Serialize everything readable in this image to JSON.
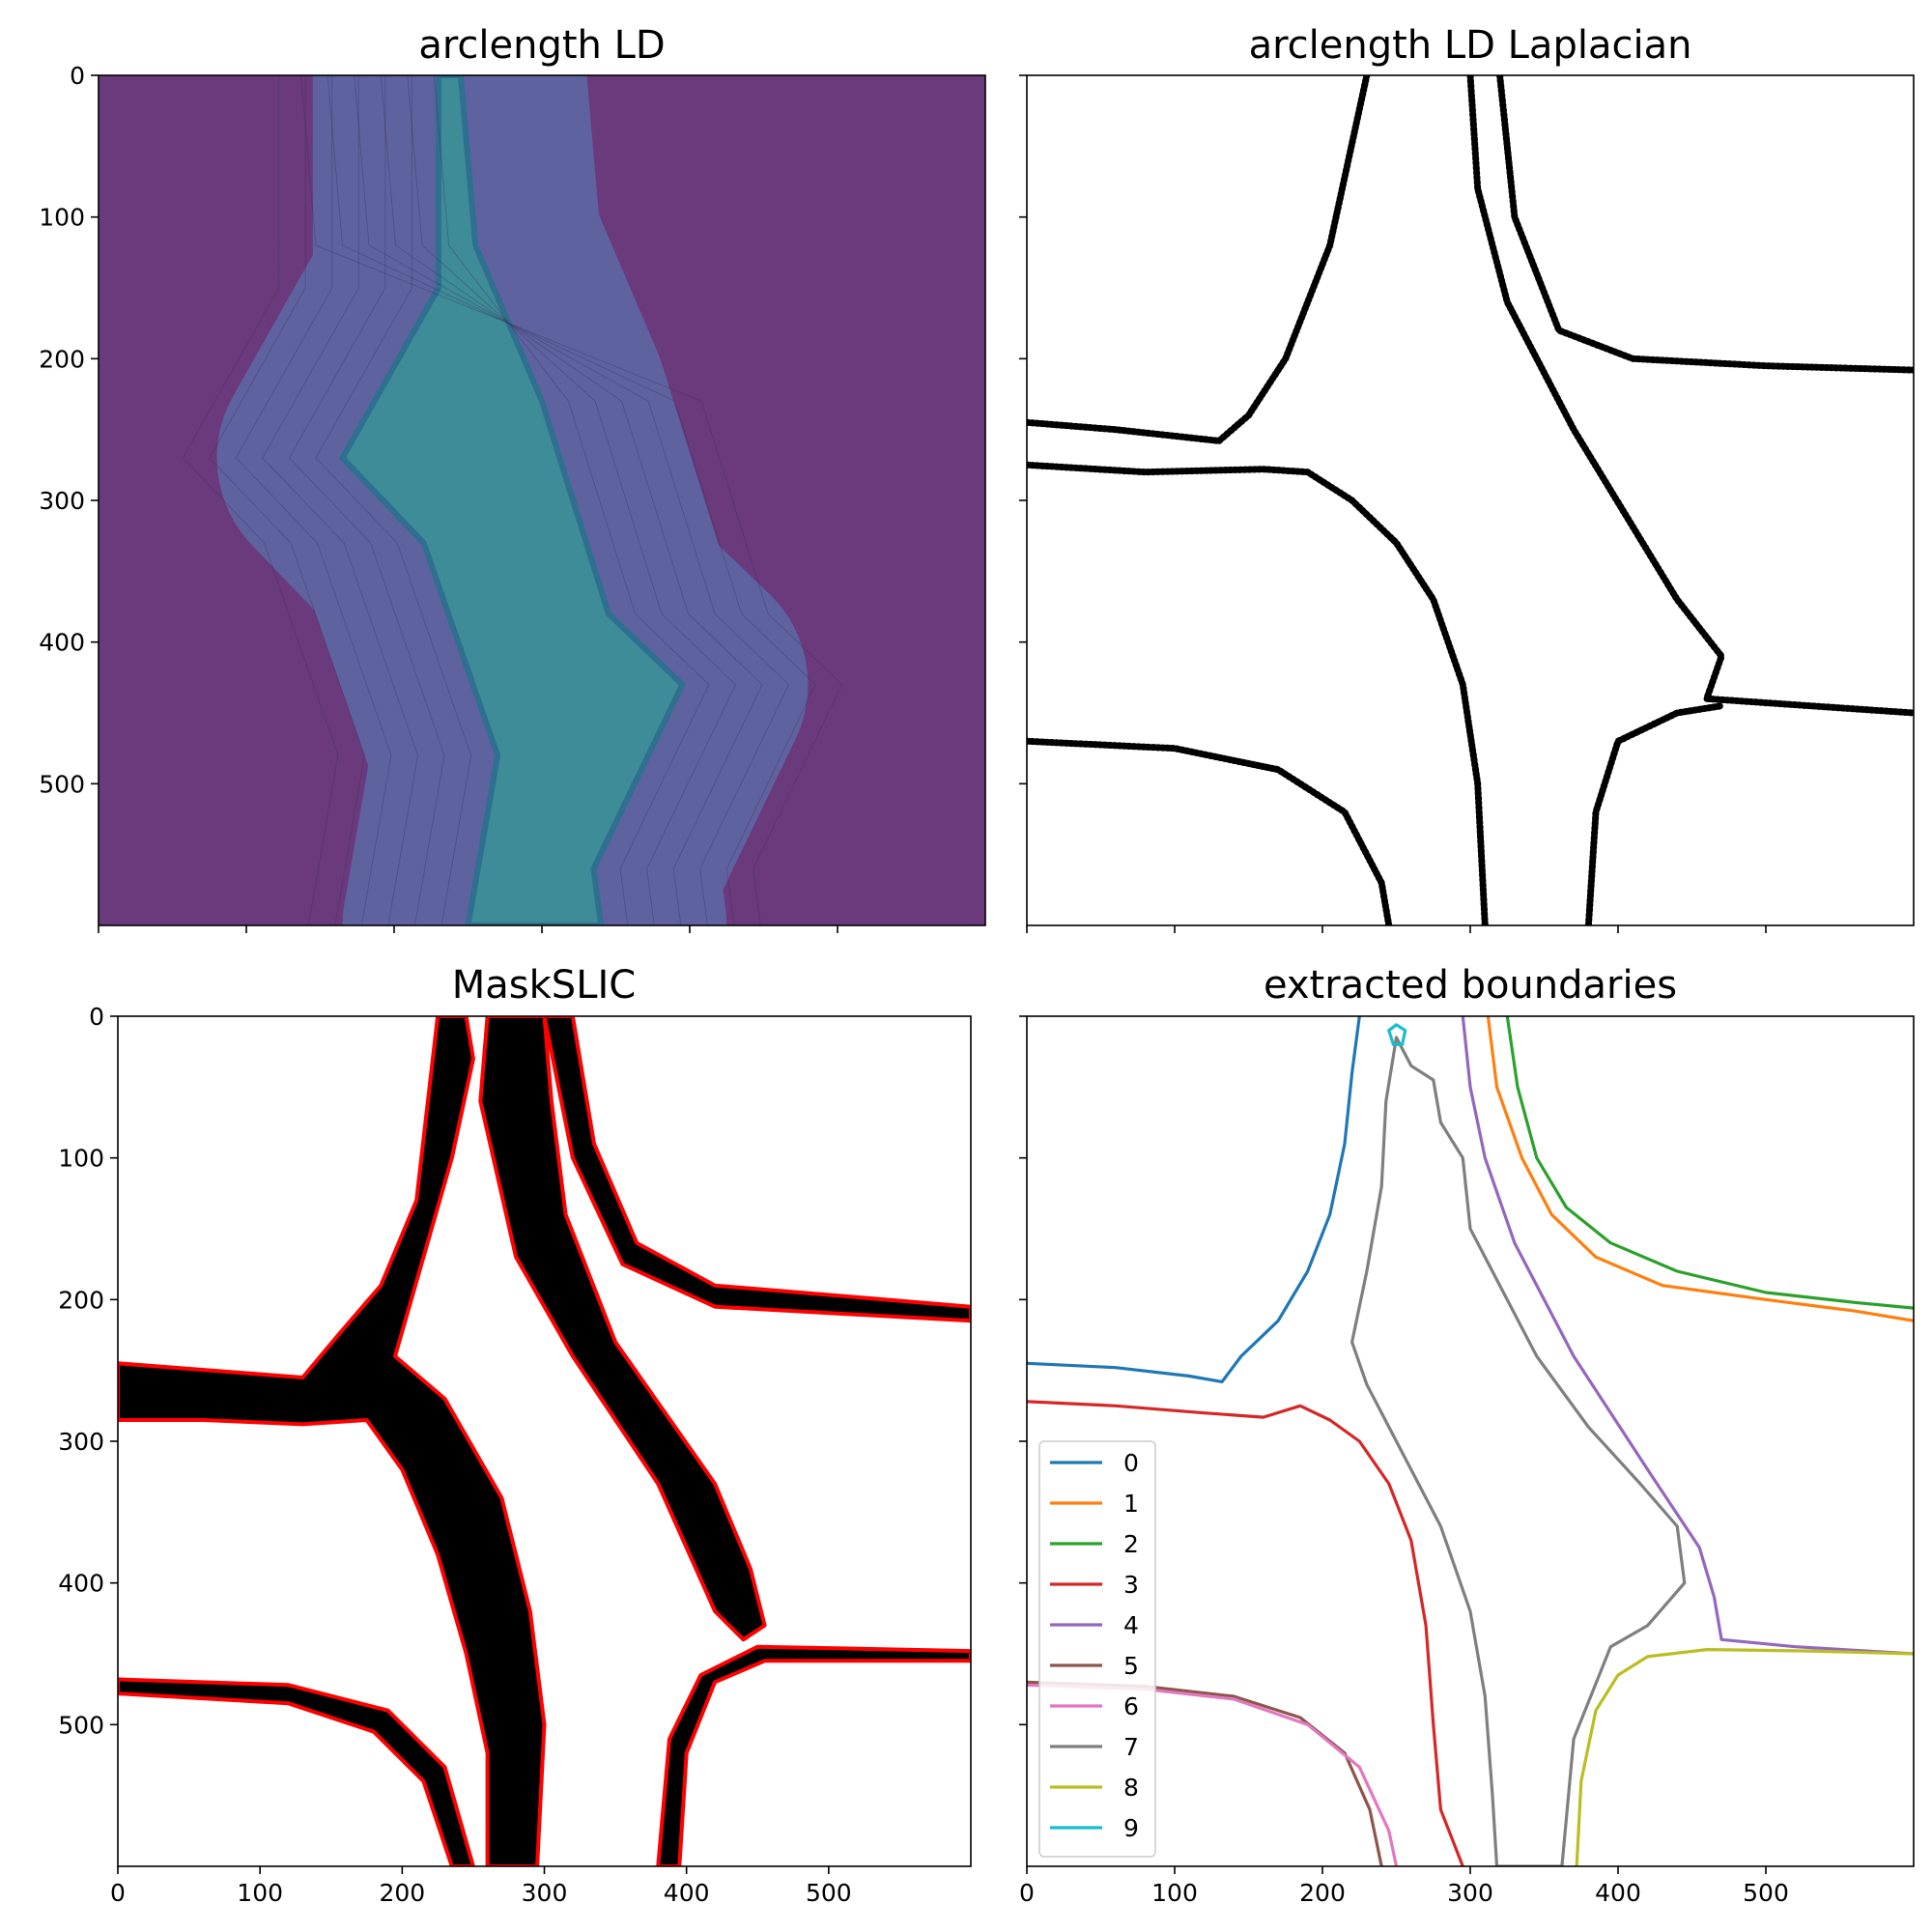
{
  "chart_data": [
    {
      "type": "heatmap",
      "title": "arclength LD",
      "xlim": [
        0,
        600
      ],
      "ylim": [
        600,
        0
      ],
      "yticks": [
        0,
        100,
        200,
        300,
        400,
        500
      ],
      "xticks": [
        0,
        100,
        200,
        300,
        400,
        500
      ],
      "show_xtick_labels": false,
      "show_ytick_labels": true,
      "colormap": "viridis",
      "colors": {
        "background": "#6b3a7c",
        "mid": "#5e63a0",
        "ridge": "#3e8c98"
      },
      "features": [
        {
          "name": "ridge-vertical",
          "points": [
            [
              245,
              0
            ],
            [
              255,
              120
            ],
            [
              300,
              230
            ],
            [
              345,
              380
            ],
            [
              395,
              430
            ],
            [
              335,
              560
            ],
            [
              340,
              600
            ],
            [
              250,
              600
            ],
            [
              270,
              480
            ],
            [
              220,
              330
            ],
            [
              165,
              270
            ],
            [
              230,
              150
            ],
            [
              230,
              0
            ]
          ]
        }
      ]
    },
    {
      "type": "scatter",
      "title": "arclength LD Laplacian",
      "xlim": [
        0,
        600
      ],
      "ylim": [
        600,
        0
      ],
      "yticks": [
        0,
        100,
        200,
        300,
        400,
        500
      ],
      "xticks": [
        0,
        100,
        200,
        300,
        400,
        500
      ],
      "show_xtick_labels": false,
      "show_ytick_labels": false,
      "color": "#000000",
      "curves": [
        [
          [
            0,
            245
          ],
          [
            60,
            250
          ],
          [
            130,
            258
          ],
          [
            150,
            240
          ],
          [
            175,
            200
          ],
          [
            205,
            120
          ],
          [
            230,
            0
          ]
        ],
        [
          [
            0,
            275
          ],
          [
            80,
            280
          ],
          [
            160,
            278
          ],
          [
            190,
            280
          ],
          [
            220,
            300
          ],
          [
            250,
            330
          ],
          [
            275,
            370
          ],
          [
            295,
            430
          ],
          [
            305,
            500
          ],
          [
            310,
            600
          ]
        ],
        [
          [
            320,
            0
          ],
          [
            330,
            100
          ],
          [
            360,
            180
          ],
          [
            410,
            200
          ],
          [
            500,
            205
          ],
          [
            600,
            208
          ]
        ],
        [
          [
            300,
            0
          ],
          [
            305,
            80
          ],
          [
            325,
            160
          ],
          [
            370,
            250
          ],
          [
            440,
            370
          ],
          [
            470,
            410
          ],
          [
            460,
            440
          ],
          [
            530,
            445
          ],
          [
            600,
            450
          ]
        ],
        [
          [
            0,
            470
          ],
          [
            100,
            475
          ],
          [
            170,
            490
          ],
          [
            215,
            520
          ],
          [
            240,
            570
          ],
          [
            245,
            600
          ]
        ],
        [
          [
            380,
            600
          ],
          [
            385,
            520
          ],
          [
            400,
            470
          ],
          [
            440,
            450
          ],
          [
            470,
            445
          ]
        ]
      ]
    },
    {
      "type": "heatmap",
      "title": "MaskSLIC",
      "xlim": [
        0,
        600
      ],
      "ylim": [
        600,
        0
      ],
      "xticks": [
        0,
        100,
        200,
        300,
        400,
        500
      ],
      "yticks": [
        0,
        100,
        200,
        300,
        400,
        500
      ],
      "show_xtick_labels": true,
      "show_ytick_labels": true,
      "colors": {
        "mask": "#000000",
        "outline": "#ff0000"
      },
      "regions": [
        [
          [
            0,
            245
          ],
          [
            130,
            255
          ],
          [
            155,
            225
          ],
          [
            185,
            190
          ],
          [
            210,
            130
          ],
          [
            225,
            0
          ],
          [
            245,
            0
          ],
          [
            250,
            30
          ],
          [
            235,
            100
          ],
          [
            215,
            170
          ],
          [
            195,
            240
          ],
          [
            230,
            270
          ],
          [
            270,
            340
          ],
          [
            290,
            420
          ],
          [
            300,
            500
          ],
          [
            295,
            600
          ],
          [
            260,
            600
          ],
          [
            260,
            520
          ],
          [
            245,
            450
          ],
          [
            225,
            380
          ],
          [
            200,
            320
          ],
          [
            175,
            285
          ],
          [
            130,
            288
          ],
          [
            60,
            285
          ],
          [
            0,
            285
          ]
        ],
        [
          [
            300,
            0
          ],
          [
            320,
            0
          ],
          [
            335,
            90
          ],
          [
            365,
            160
          ],
          [
            420,
            190
          ],
          [
            600,
            205
          ],
          [
            600,
            215
          ],
          [
            420,
            205
          ],
          [
            355,
            175
          ],
          [
            320,
            100
          ]
        ],
        [
          [
            0,
            468
          ],
          [
            120,
            472
          ],
          [
            190,
            490
          ],
          [
            230,
            530
          ],
          [
            250,
            600
          ],
          [
            235,
            600
          ],
          [
            215,
            540
          ],
          [
            180,
            505
          ],
          [
            120,
            485
          ],
          [
            0,
            478
          ]
        ],
        [
          [
            380,
            600
          ],
          [
            388,
            510
          ],
          [
            410,
            465
          ],
          [
            450,
            445
          ],
          [
            600,
            448
          ],
          [
            600,
            455
          ],
          [
            455,
            455
          ],
          [
            420,
            470
          ],
          [
            400,
            520
          ],
          [
            395,
            600
          ]
        ],
        [
          [
            260,
            0
          ],
          [
            300,
            0
          ],
          [
            305,
            60
          ],
          [
            315,
            140
          ],
          [
            350,
            230
          ],
          [
            420,
            330
          ],
          [
            445,
            390
          ],
          [
            455,
            430
          ],
          [
            440,
            440
          ],
          [
            420,
            420
          ],
          [
            380,
            330
          ],
          [
            320,
            240
          ],
          [
            280,
            170
          ],
          [
            255,
            60
          ]
        ]
      ]
    },
    {
      "type": "line",
      "title": "extracted boundaries",
      "xlim": [
        0,
        600
      ],
      "ylim": [
        600,
        0
      ],
      "xticks": [
        0,
        100,
        200,
        300,
        400,
        500
      ],
      "yticks": [
        0,
        100,
        200,
        300,
        400,
        500
      ],
      "show_xtick_labels": true,
      "show_ytick_labels": false,
      "legend": "lower-left",
      "series": [
        {
          "name": "0",
          "color": "#1f77b4",
          "points": [
            [
              0,
              245
            ],
            [
              60,
              248
            ],
            [
              110,
              254
            ],
            [
              132,
              258
            ],
            [
              145,
              240
            ],
            [
              170,
              215
            ],
            [
              190,
              180
            ],
            [
              205,
              140
            ],
            [
              215,
              90
            ],
            [
              220,
              40
            ],
            [
              225,
              0
            ]
          ]
        },
        {
          "name": "1",
          "color": "#ff7f0e",
          "points": [
            [
              312,
              0
            ],
            [
              318,
              50
            ],
            [
              335,
              100
            ],
            [
              355,
              140
            ],
            [
              385,
              170
            ],
            [
              430,
              190
            ],
            [
              500,
              200
            ],
            [
              560,
              208
            ],
            [
              600,
              215
            ]
          ]
        },
        {
          "name": "2",
          "color": "#2ca02c",
          "points": [
            [
              325,
              0
            ],
            [
              332,
              50
            ],
            [
              345,
              100
            ],
            [
              365,
              135
            ],
            [
              395,
              160
            ],
            [
              440,
              180
            ],
            [
              500,
              195
            ],
            [
              560,
              202
            ],
            [
              600,
              206
            ]
          ]
        },
        {
          "name": "3",
          "color": "#d62728",
          "points": [
            [
              0,
              272
            ],
            [
              60,
              275
            ],
            [
              120,
              280
            ],
            [
              160,
              283
            ],
            [
              185,
              275
            ],
            [
              205,
              285
            ],
            [
              225,
              300
            ],
            [
              245,
              330
            ],
            [
              260,
              370
            ],
            [
              270,
              430
            ],
            [
              275,
              500
            ],
            [
              280,
              560
            ],
            [
              295,
              600
            ]
          ]
        },
        {
          "name": "4",
          "color": "#9467bd",
          "points": [
            [
              295,
              0
            ],
            [
              300,
              50
            ],
            [
              310,
              100
            ],
            [
              330,
              160
            ],
            [
              370,
              240
            ],
            [
              420,
              320
            ],
            [
              455,
              375
            ],
            [
              465,
              410
            ],
            [
              470,
              440
            ],
            [
              520,
              445
            ],
            [
              600,
              450
            ]
          ]
        },
        {
          "name": "5",
          "color": "#8c564b",
          "points": [
            [
              0,
              470
            ],
            [
              80,
              473
            ],
            [
              140,
              480
            ],
            [
              185,
              495
            ],
            [
              215,
              520
            ],
            [
              232,
              560
            ],
            [
              240,
              600
            ]
          ]
        },
        {
          "name": "6",
          "color": "#e377c2",
          "points": [
            [
              0,
              472
            ],
            [
              80,
              475
            ],
            [
              140,
              482
            ],
            [
              190,
              500
            ],
            [
              225,
              530
            ],
            [
              245,
              575
            ],
            [
              250,
              600
            ]
          ]
        },
        {
          "name": "7",
          "color": "#7f7f7f",
          "points": [
            [
              250,
              15
            ],
            [
              260,
              35
            ],
            [
              275,
              45
            ],
            [
              280,
              75
            ],
            [
              295,
              100
            ],
            [
              300,
              150
            ],
            [
              320,
              190
            ],
            [
              345,
              240
            ],
            [
              380,
              290
            ],
            [
              415,
              330
            ],
            [
              440,
              360
            ],
            [
              445,
              400
            ],
            [
              420,
              430
            ],
            [
              395,
              445
            ],
            [
              370,
              510
            ],
            [
              362,
              600
            ],
            [
              318,
              600
            ],
            [
              315,
              550
            ],
            [
              310,
              480
            ],
            [
              300,
              420
            ],
            [
              280,
              360
            ],
            [
              250,
              300
            ],
            [
              230,
              260
            ],
            [
              220,
              230
            ],
            [
              230,
              180
            ],
            [
              240,
              120
            ],
            [
              243,
              60
            ],
            [
              250,
              15
            ]
          ]
        },
        {
          "name": "8",
          "color": "#bcbd22",
          "points": [
            [
              372,
              600
            ],
            [
              375,
              540
            ],
            [
              385,
              490
            ],
            [
              400,
              465
            ],
            [
              420,
              452
            ],
            [
              460,
              447
            ],
            [
              530,
              448
            ],
            [
              600,
              450
            ]
          ]
        },
        {
          "name": "9",
          "color": "#17becf",
          "points": [
            [
              245,
              10
            ],
            [
              250,
              6
            ],
            [
              256,
              10
            ],
            [
              254,
              20
            ],
            [
              248,
              20
            ],
            [
              245,
              10
            ]
          ]
        }
      ]
    }
  ]
}
